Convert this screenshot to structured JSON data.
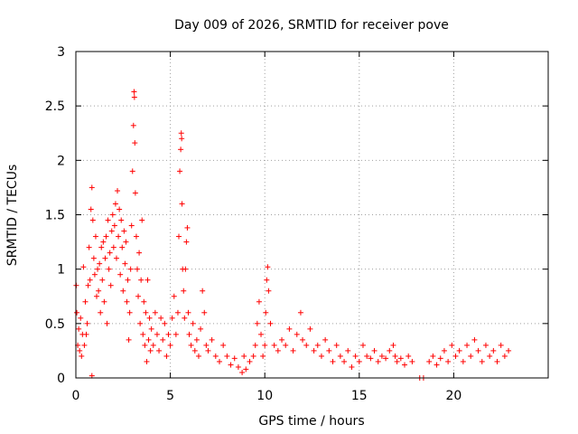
{
  "chart_data": {
    "type": "scatter",
    "title": "Day 009 of 2026, SRMTID for receiver pove",
    "xlabel": "GPS time / hours",
    "ylabel": "SRMTID / TECUs",
    "xlim": [
      0,
      25
    ],
    "ylim": [
      0,
      3
    ],
    "xticks": [
      0,
      5,
      10,
      15,
      20
    ],
    "xtick_labels": [
      "0",
      "5",
      "10",
      "15",
      "20"
    ],
    "yticks": [
      0,
      0.5,
      1,
      1.5,
      2,
      2.5,
      3
    ],
    "ytick_labels": [
      "0",
      "0.5",
      "1",
      "1.5",
      "2",
      "2.5",
      "3"
    ],
    "grid": true,
    "marker": "plus",
    "color": "#ff0000",
    "series": [
      {
        "name": "SRMTID",
        "points": [
          [
            0.02,
            0.85
          ],
          [
            0.05,
            0.6
          ],
          [
            0.1,
            0.3
          ],
          [
            0.15,
            0.45
          ],
          [
            0.2,
            0.25
          ],
          [
            0.25,
            0.55
          ],
          [
            0.3,
            0.2
          ],
          [
            0.35,
            0.4
          ],
          [
            0.4,
            1.02
          ],
          [
            0.45,
            0.3
          ],
          [
            0.5,
            0.7
          ],
          [
            0.55,
            0.4
          ],
          [
            0.6,
            0.5
          ],
          [
            0.65,
            0.85
          ],
          [
            0.7,
            1.2
          ],
          [
            0.75,
            0.9
          ],
          [
            0.8,
            1.55
          ],
          [
            0.85,
            1.75
          ],
          [
            0.9,
            1.45
          ],
          [
            0.95,
            1.1
          ],
          [
            0.85,
            0.02
          ],
          [
            1.0,
            0.95
          ],
          [
            1.05,
            1.3
          ],
          [
            1.1,
            0.75
          ],
          [
            1.15,
            1.0
          ],
          [
            1.2,
            0.8
          ],
          [
            1.25,
            1.05
          ],
          [
            1.3,
            0.6
          ],
          [
            1.35,
            1.2
          ],
          [
            1.4,
            0.9
          ],
          [
            1.45,
            1.25
          ],
          [
            1.5,
            0.7
          ],
          [
            1.55,
            1.1
          ],
          [
            1.6,
            1.3
          ],
          [
            1.65,
            0.5
          ],
          [
            1.7,
            1.45
          ],
          [
            1.75,
            1.0
          ],
          [
            1.8,
            1.15
          ],
          [
            1.85,
            0.85
          ],
          [
            1.9,
            1.35
          ],
          [
            1.95,
            1.5
          ],
          [
            2.0,
            1.2
          ],
          [
            2.05,
            1.4
          ],
          [
            2.1,
            1.6
          ],
          [
            2.15,
            1.1
          ],
          [
            2.2,
            1.72
          ],
          [
            2.25,
            1.3
          ],
          [
            2.3,
            1.55
          ],
          [
            2.35,
            0.95
          ],
          [
            2.4,
            1.45
          ],
          [
            2.45,
            1.2
          ],
          [
            2.5,
            0.8
          ],
          [
            2.55,
            1.35
          ],
          [
            2.6,
            1.05
          ],
          [
            2.65,
            1.25
          ],
          [
            2.7,
            0.7
          ],
          [
            2.75,
            0.9
          ],
          [
            2.8,
            0.35
          ],
          [
            2.85,
            0.6
          ],
          [
            2.9,
            1.0
          ],
          [
            2.95,
            1.4
          ],
          [
            3.0,
            1.9
          ],
          [
            3.05,
            2.32
          ],
          [
            3.08,
            2.63
          ],
          [
            3.1,
            2.58
          ],
          [
            3.12,
            2.16
          ],
          [
            3.15,
            1.7
          ],
          [
            3.2,
            1.3
          ],
          [
            3.25,
            1.0
          ],
          [
            3.3,
            0.75
          ],
          [
            3.35,
            1.15
          ],
          [
            3.4,
            0.5
          ],
          [
            3.45,
            0.9
          ],
          [
            3.5,
            1.45
          ],
          [
            3.55,
            0.4
          ],
          [
            3.6,
            0.7
          ],
          [
            3.65,
            0.3
          ],
          [
            3.7,
            0.6
          ],
          [
            3.75,
            0.15
          ],
          [
            3.8,
            0.9
          ],
          [
            3.85,
            0.35
          ],
          [
            3.9,
            0.55
          ],
          [
            3.95,
            0.25
          ],
          [
            4.0,
            0.45
          ],
          [
            4.1,
            0.3
          ],
          [
            4.2,
            0.6
          ],
          [
            4.3,
            0.4
          ],
          [
            4.4,
            0.25
          ],
          [
            4.5,
            0.55
          ],
          [
            4.6,
            0.35
          ],
          [
            4.7,
            0.5
          ],
          [
            4.8,
            0.2
          ],
          [
            4.9,
            0.4
          ],
          [
            5.0,
            0.3
          ],
          [
            5.1,
            0.55
          ],
          [
            5.2,
            0.75
          ],
          [
            5.3,
            0.4
          ],
          [
            5.4,
            0.6
          ],
          [
            5.45,
            1.3
          ],
          [
            5.5,
            1.9
          ],
          [
            5.55,
            2.1
          ],
          [
            5.58,
            2.25
          ],
          [
            5.6,
            2.2
          ],
          [
            5.62,
            1.6
          ],
          [
            5.65,
            1.0
          ],
          [
            5.7,
            0.8
          ],
          [
            5.75,
            0.55
          ],
          [
            5.8,
            1.0
          ],
          [
            5.85,
            1.25
          ],
          [
            5.9,
            1.38
          ],
          [
            5.95,
            0.6
          ],
          [
            6.0,
            0.4
          ],
          [
            6.1,
            0.3
          ],
          [
            6.2,
            0.5
          ],
          [
            6.3,
            0.25
          ],
          [
            6.4,
            0.35
          ],
          [
            6.5,
            0.2
          ],
          [
            6.6,
            0.45
          ],
          [
            6.7,
            0.8
          ],
          [
            6.8,
            0.6
          ],
          [
            6.9,
            0.3
          ],
          [
            7.0,
            0.25
          ],
          [
            7.2,
            0.35
          ],
          [
            7.4,
            0.2
          ],
          [
            7.6,
            0.15
          ],
          [
            7.8,
            0.3
          ],
          [
            8.0,
            0.2
          ],
          [
            8.2,
            0.12
          ],
          [
            8.4,
            0.18
          ],
          [
            8.6,
            0.1
          ],
          [
            8.8,
            0.05
          ],
          [
            8.9,
            0.2
          ],
          [
            9.0,
            0.08
          ],
          [
            9.2,
            0.15
          ],
          [
            9.4,
            0.2
          ],
          [
            9.5,
            0.3
          ],
          [
            9.6,
            0.5
          ],
          [
            9.7,
            0.7
          ],
          [
            9.8,
            0.4
          ],
          [
            9.9,
            0.2
          ],
          [
            10.0,
            0.3
          ],
          [
            10.05,
            0.6
          ],
          [
            10.1,
            0.9
          ],
          [
            10.15,
            1.02
          ],
          [
            10.2,
            0.8
          ],
          [
            10.3,
            0.5
          ],
          [
            10.5,
            0.3
          ],
          [
            10.7,
            0.25
          ],
          [
            10.9,
            0.35
          ],
          [
            11.1,
            0.3
          ],
          [
            11.3,
            0.45
          ],
          [
            11.5,
            0.25
          ],
          [
            11.7,
            0.4
          ],
          [
            11.9,
            0.6
          ],
          [
            12.0,
            0.35
          ],
          [
            12.2,
            0.3
          ],
          [
            12.4,
            0.45
          ],
          [
            12.6,
            0.25
          ],
          [
            12.8,
            0.3
          ],
          [
            13.0,
            0.2
          ],
          [
            13.2,
            0.35
          ],
          [
            13.4,
            0.25
          ],
          [
            13.6,
            0.15
          ],
          [
            13.8,
            0.3
          ],
          [
            14.0,
            0.2
          ],
          [
            14.2,
            0.15
          ],
          [
            14.4,
            0.25
          ],
          [
            14.6,
            0.1
          ],
          [
            14.8,
            0.2
          ],
          [
            15.0,
            0.15
          ],
          [
            15.2,
            0.3
          ],
          [
            15.4,
            0.2
          ],
          [
            15.6,
            0.18
          ],
          [
            15.8,
            0.25
          ],
          [
            16.0,
            0.15
          ],
          [
            16.2,
            0.2
          ],
          [
            16.4,
            0.18
          ],
          [
            16.6,
            0.25
          ],
          [
            16.8,
            0.3
          ],
          [
            16.9,
            0.2
          ],
          [
            17.0,
            0.15
          ],
          [
            17.2,
            0.18
          ],
          [
            17.4,
            0.12
          ],
          [
            17.6,
            0.2
          ],
          [
            17.8,
            0.15
          ],
          [
            18.2,
            0.0
          ],
          [
            18.4,
            0.0
          ],
          [
            18.7,
            0.15
          ],
          [
            18.9,
            0.2
          ],
          [
            19.1,
            0.12
          ],
          [
            19.3,
            0.18
          ],
          [
            19.5,
            0.25
          ],
          [
            19.7,
            0.15
          ],
          [
            19.9,
            0.3
          ],
          [
            20.1,
            0.2
          ],
          [
            20.3,
            0.25
          ],
          [
            20.5,
            0.15
          ],
          [
            20.7,
            0.3
          ],
          [
            20.9,
            0.2
          ],
          [
            21.1,
            0.35
          ],
          [
            21.3,
            0.25
          ],
          [
            21.5,
            0.15
          ],
          [
            21.7,
            0.3
          ],
          [
            21.9,
            0.2
          ],
          [
            22.1,
            0.25
          ],
          [
            22.3,
            0.15
          ],
          [
            22.5,
            0.3
          ],
          [
            22.7,
            0.2
          ],
          [
            22.9,
            0.25
          ]
        ]
      }
    ]
  }
}
